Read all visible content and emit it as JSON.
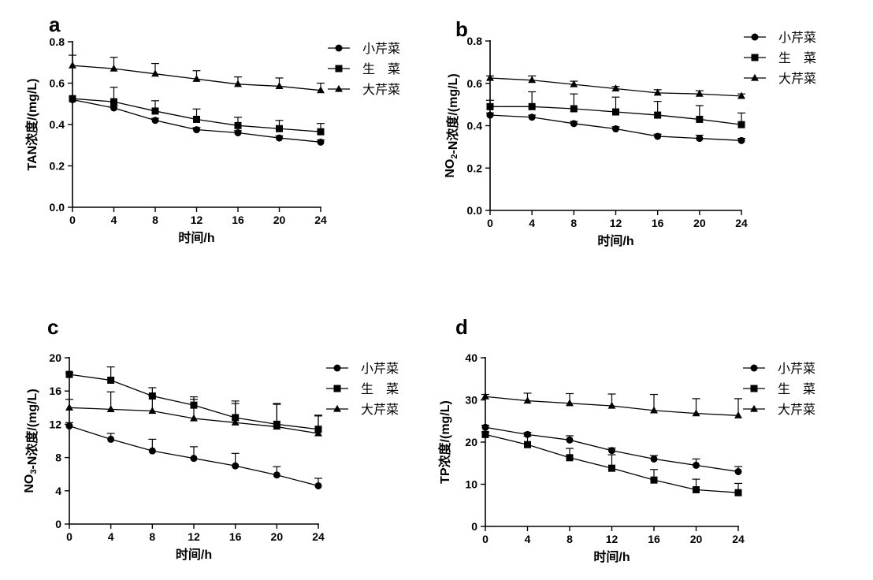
{
  "chart_data": [
    {
      "panel": "a",
      "type": "line",
      "ylabel": "TAN浓度/(mg/L)",
      "xlabel": "时间/h",
      "x": [
        0,
        4,
        8,
        12,
        16,
        20,
        24
      ],
      "xticks": [
        "0",
        "4",
        "8",
        "12",
        "16",
        "20",
        "24"
      ],
      "ylim": [
        0,
        0.8
      ],
      "yticks": [
        0,
        0.2,
        0.4,
        0.6,
        0.8
      ],
      "ytick_labels": [
        "0.0",
        "0.2",
        "0.4",
        "0.6",
        "0.8"
      ],
      "series": [
        {
          "name": "小芹菜",
          "marker": "circle",
          "values": [
            0.52,
            0.48,
            0.42,
            0.375,
            0.36,
            0.335,
            0.315
          ],
          "errors": [
            0,
            0.01,
            0.01,
            0.01,
            0.01,
            0.01,
            0.01
          ]
        },
        {
          "name": "生　菜",
          "marker": "square",
          "values": [
            0.525,
            0.51,
            0.465,
            0.425,
            0.395,
            0.38,
            0.365
          ],
          "errors": [
            0,
            0.07,
            0.05,
            0.05,
            0.04,
            0.04,
            0.04
          ]
        },
        {
          "name": "大芹菜",
          "marker": "triangle",
          "values": [
            0.685,
            0.67,
            0.645,
            0.62,
            0.595,
            0.585,
            0.565
          ],
          "errors": [
            0.05,
            0.055,
            0.05,
            0.04,
            0.035,
            0.04,
            0.035
          ]
        }
      ]
    },
    {
      "panel": "b",
      "type": "line",
      "ylabel": "NO₂-N浓度/(mg/L)",
      "xlabel": "时间/h",
      "x": [
        0,
        4,
        8,
        12,
        16,
        20,
        24
      ],
      "xticks": [
        "0",
        "4",
        "8",
        "12",
        "16",
        "20",
        "24"
      ],
      "ylim": [
        0,
        0.8
      ],
      "yticks": [
        0,
        0.2,
        0.4,
        0.6,
        0.8
      ],
      "ytick_labels": [
        "0.0",
        "0.2",
        "0.4",
        "0.6",
        "0.8"
      ],
      "series": [
        {
          "name": "小芹菜",
          "marker": "circle",
          "values": [
            0.45,
            0.44,
            0.41,
            0.385,
            0.35,
            0.34,
            0.33
          ],
          "errors": [
            0.01,
            0.01,
            0.01,
            0.01,
            0.01,
            0.015,
            0.01
          ]
        },
        {
          "name": "生　菜",
          "marker": "square",
          "values": [
            0.49,
            0.49,
            0.48,
            0.465,
            0.45,
            0.43,
            0.405
          ],
          "errors": [
            0.03,
            0.07,
            0.07,
            0.07,
            0.065,
            0.065,
            0.055
          ]
        },
        {
          "name": "大芹菜",
          "marker": "triangle",
          "values": [
            0.625,
            0.615,
            0.595,
            0.575,
            0.555,
            0.55,
            0.54
          ],
          "errors": [
            0.01,
            0.02,
            0.015,
            0.01,
            0.015,
            0.015,
            0.01
          ]
        }
      ]
    },
    {
      "panel": "c",
      "type": "line",
      "ylabel": "NO₃-N浓度/(mg/L)",
      "xlabel": "时间/h",
      "x": [
        0,
        4,
        8,
        12,
        16,
        20,
        24
      ],
      "xticks": [
        "0",
        "4",
        "8",
        "12",
        "16",
        "20",
        "24"
      ],
      "ylim": [
        0,
        20
      ],
      "yticks": [
        0,
        4,
        8,
        12,
        16,
        20
      ],
      "ytick_labels": [
        "0",
        "4",
        "8",
        "12",
        "16",
        "20"
      ],
      "series": [
        {
          "name": "小芹菜",
          "marker": "circle",
          "values": [
            11.8,
            10.2,
            8.8,
            7.9,
            7.0,
            5.9,
            4.6
          ],
          "errors": [
            0.4,
            0.7,
            1.4,
            1.4,
            1.5,
            1.0,
            0.9
          ]
        },
        {
          "name": "生　菜",
          "marker": "square",
          "values": [
            18.0,
            17.3,
            15.4,
            14.3,
            12.8,
            12.0,
            11.4
          ],
          "errors": [
            0.2,
            1.6,
            1.0,
            1.0,
            2.0,
            2.5,
            1.7
          ]
        },
        {
          "name": "大芹菜",
          "marker": "triangle",
          "values": [
            14.0,
            13.8,
            13.6,
            12.7,
            12.2,
            11.7,
            10.9
          ],
          "errors": [
            1.0,
            2.1,
            1.8,
            2.3,
            2.3,
            2.7,
            2.1
          ]
        }
      ]
    },
    {
      "panel": "d",
      "type": "line",
      "ylabel": "TP浓度/(mg/L)",
      "xlabel": "时间/h",
      "x": [
        0,
        4,
        8,
        12,
        16,
        20,
        24
      ],
      "xticks": [
        "0",
        "4",
        "8",
        "12",
        "16",
        "20",
        "24"
      ],
      "ylim": [
        0,
        40
      ],
      "yticks": [
        0,
        10,
        20,
        30,
        40
      ],
      "ytick_labels": [
        "0",
        "10",
        "20",
        "30",
        "40"
      ],
      "series": [
        {
          "name": "小芹菜",
          "marker": "circle",
          "values": [
            23.5,
            21.8,
            20.5,
            18.0,
            16.0,
            14.5,
            13.0
          ],
          "errors": [
            0.5,
            0.5,
            1.0,
            0.6,
            0.8,
            1.5,
            1.2
          ]
        },
        {
          "name": "生　菜",
          "marker": "square",
          "values": [
            21.8,
            19.4,
            16.3,
            13.8,
            11.0,
            8.7,
            8.0
          ],
          "errors": [
            0.6,
            2.0,
            2.2,
            3.2,
            2.5,
            2.5,
            2.2
          ]
        },
        {
          "name": "大芹菜",
          "marker": "triangle",
          "values": [
            30.8,
            29.8,
            29.2,
            28.6,
            27.5,
            26.8,
            26.3
          ],
          "errors": [
            0.5,
            1.8,
            2.3,
            2.8,
            3.8,
            3.5,
            4.0
          ]
        }
      ]
    }
  ]
}
